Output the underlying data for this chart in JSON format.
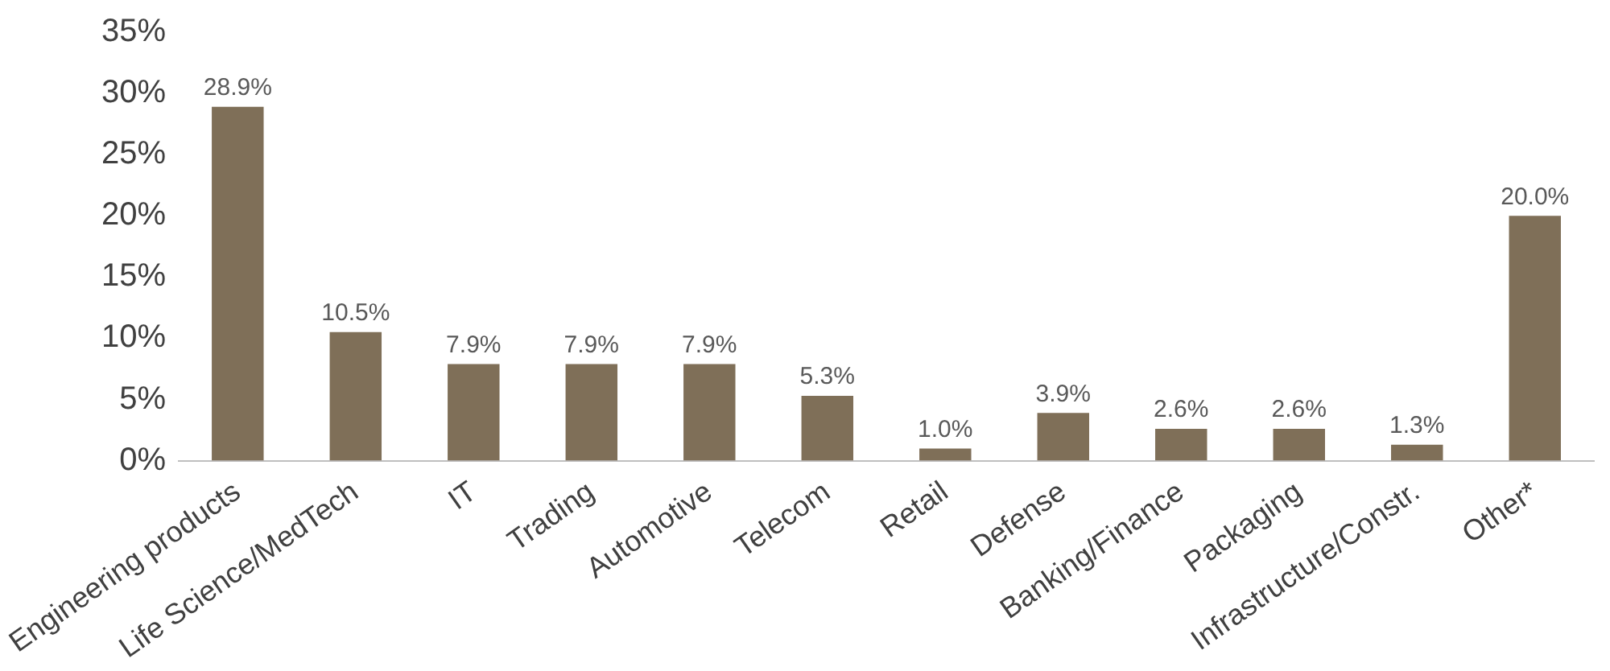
{
  "chart_data": {
    "type": "bar",
    "categories": [
      "Engineering products",
      "Life Science/MedTech",
      "IT",
      "Trading",
      "Automotive",
      "Telecom",
      "Retail",
      "Defense",
      "Banking/Finance",
      "Packaging",
      "Infrastructure/Constr.",
      "Other*"
    ],
    "values": [
      28.9,
      10.5,
      7.9,
      7.9,
      7.9,
      5.3,
      1.0,
      3.9,
      2.6,
      2.6,
      1.3,
      20.0
    ],
    "value_labels": [
      "28.9%",
      "10.5%",
      "7.9%",
      "7.9%",
      "7.9%",
      "5.3%",
      "1.0%",
      "3.9%",
      "2.6%",
      "2.6%",
      "1.3%",
      "20.0%"
    ],
    "color": "#7f6f58",
    "ylim": [
      0,
      35
    ],
    "yticks": [
      {
        "value": 0,
        "label": "0%"
      },
      {
        "value": 5,
        "label": "5%"
      },
      {
        "value": 10,
        "label": "10%"
      },
      {
        "value": 15,
        "label": "15%"
      },
      {
        "value": 20,
        "label": "20%"
      },
      {
        "value": 25,
        "label": "25%"
      },
      {
        "value": 30,
        "label": "30%"
      },
      {
        "value": 35,
        "label": "35%"
      }
    ],
    "grid": false,
    "legend": false
  }
}
